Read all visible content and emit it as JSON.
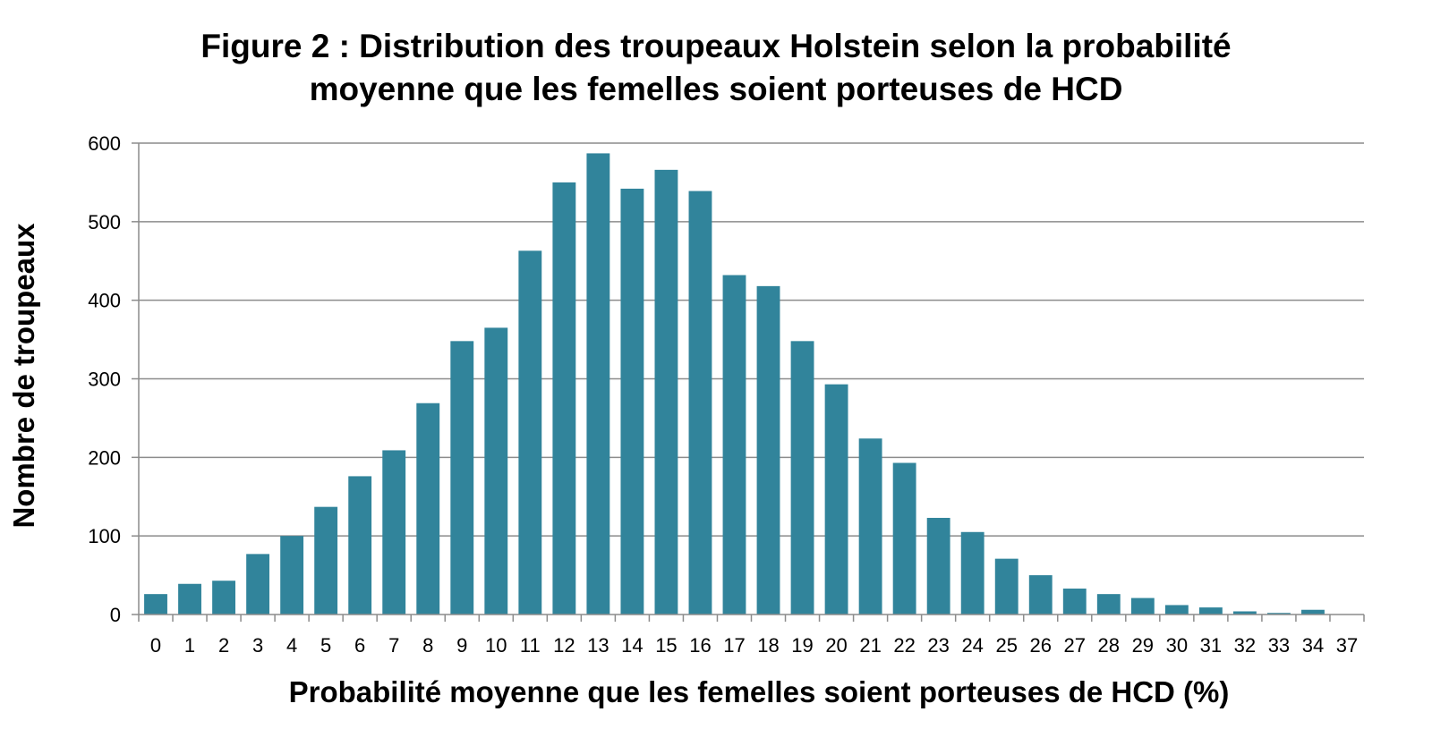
{
  "chart_data": {
    "type": "bar",
    "title_line1": "Figure 2 : Distribution des troupeaux Holstein selon la probabilité",
    "title_line2": "moyenne que les femelles soient porteuses de HCD",
    "xlabel": "Probabilité moyenne que les femelles soient porteuses de HCD (%)",
    "ylabel": "Nombre de troupeaux",
    "ylim": [
      0,
      600
    ],
    "yticks": [
      0,
      100,
      200,
      300,
      400,
      500,
      600
    ],
    "grid": true,
    "legend": "none",
    "bar_color": "#31849b",
    "categories": [
      "0",
      "1",
      "2",
      "3",
      "4",
      "5",
      "6",
      "7",
      "8",
      "9",
      "10",
      "11",
      "12",
      "13",
      "14",
      "15",
      "16",
      "17",
      "18",
      "19",
      "20",
      "21",
      "22",
      "23",
      "24",
      "25",
      "26",
      "27",
      "28",
      "29",
      "30",
      "31",
      "32",
      "33",
      "34",
      "37"
    ],
    "values": [
      26,
      39,
      43,
      77,
      100,
      137,
      176,
      209,
      269,
      348,
      365,
      463,
      550,
      587,
      542,
      566,
      539,
      432,
      418,
      348,
      293,
      224,
      193,
      123,
      105,
      71,
      50,
      33,
      26,
      21,
      12,
      9,
      4,
      2,
      6,
      0
    ]
  }
}
